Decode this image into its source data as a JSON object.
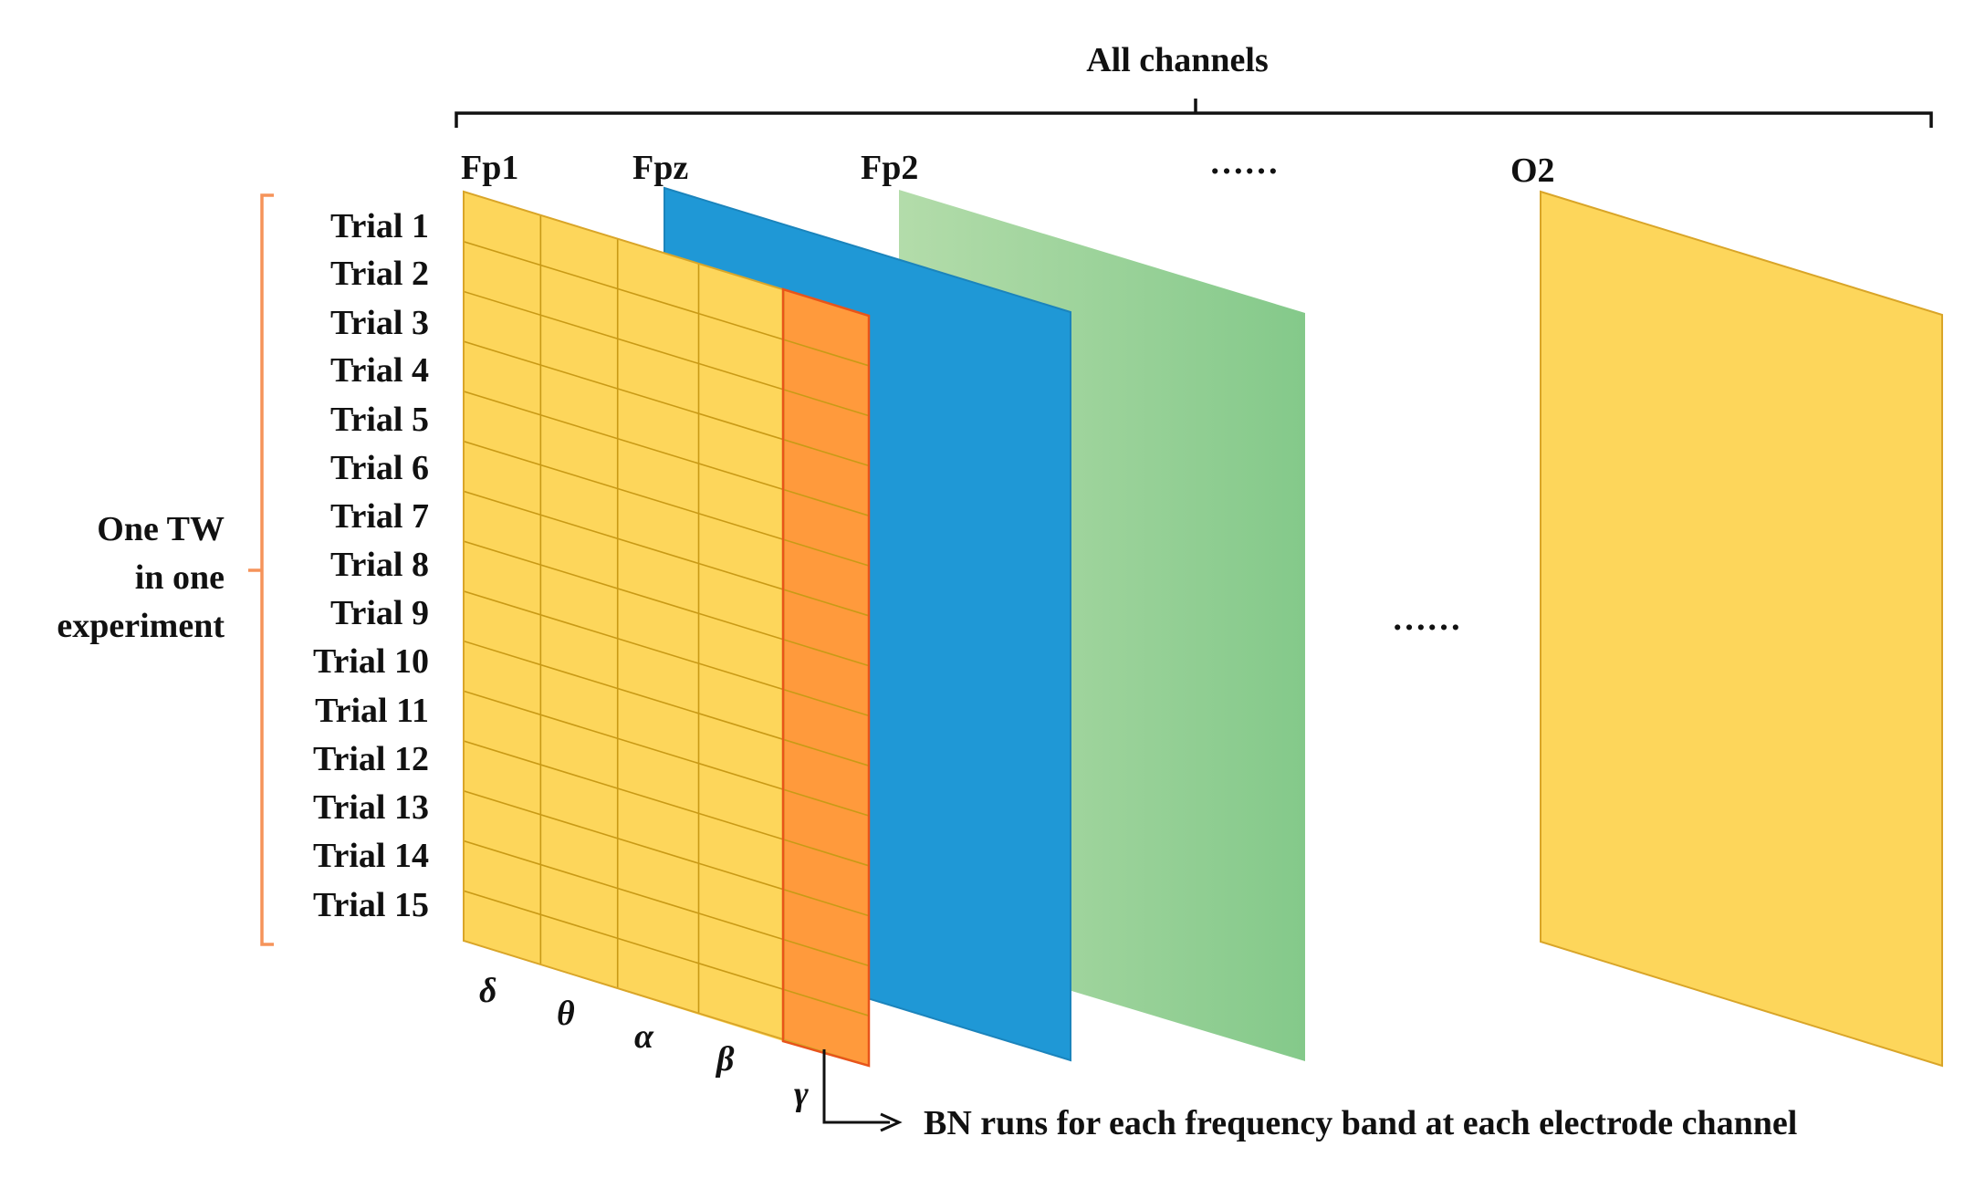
{
  "diagram": {
    "top_label": "All channels",
    "channels": [
      "Fp1",
      "Fpz",
      "Fp2",
      "O2"
    ],
    "channel_ellipsis": "……",
    "middle_ellipsis": "……",
    "trials": [
      "Trial 1",
      "Trial 2",
      "Trial 3",
      "Trial 4",
      "Trial 5",
      "Trial 6",
      "Trial 7",
      "Trial 8",
      "Trial 9",
      "Trial 10",
      "Trial 11",
      "Trial 12",
      "Trial 13",
      "Trial 14",
      "Trial 15"
    ],
    "left_label": [
      "One TW",
      "in one",
      "experiment"
    ],
    "bands": [
      "δ",
      "θ",
      "α",
      "β",
      "γ"
    ],
    "arrow_text": "BN runs for each frequency band at each electrode channel",
    "colors": {
      "yellow": "#fdd65b",
      "yellow_edge": "#d9a528",
      "orange": "#ff9a3c",
      "orange_edge": "#e8541a",
      "blue": "#1f98d6",
      "green_light": "#b3dcaa",
      "green_dark": "#84c98a",
      "bracket_orange": "#f5935a"
    }
  }
}
